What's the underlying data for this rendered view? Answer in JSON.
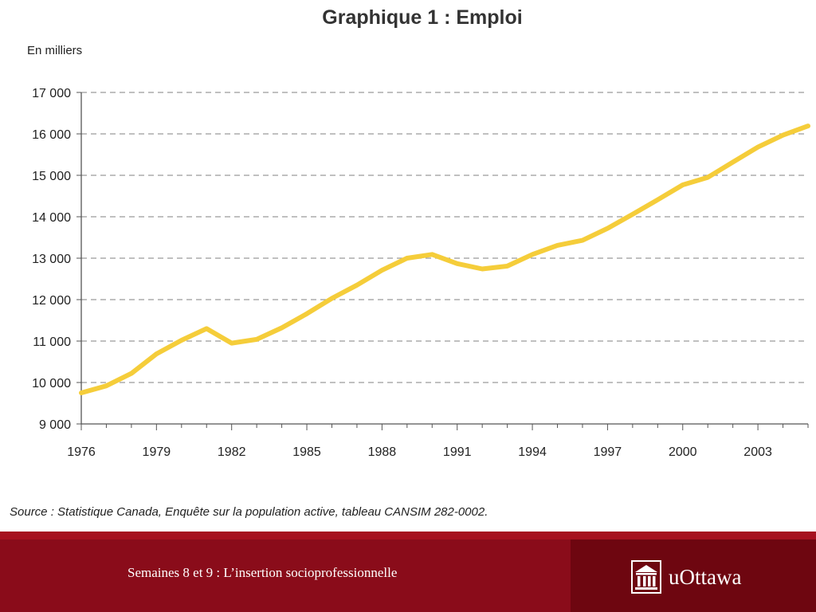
{
  "chart_data": {
    "type": "line",
    "title": "Graphique 1 : Emploi",
    "ylabel": "En milliers",
    "xlabel": "",
    "xlim": [
      1976,
      2005
    ],
    "ylim": [
      9000,
      17000
    ],
    "x_ticks": [
      1976,
      1979,
      1982,
      1985,
      1988,
      1991,
      1994,
      1997,
      2000,
      2003
    ],
    "y_ticks": [
      9000,
      10000,
      11000,
      12000,
      13000,
      14000,
      15000,
      16000,
      17000
    ],
    "y_tick_labels": [
      "9 000",
      "10 000",
      "11 000",
      "12 000",
      "13 000",
      "14 000",
      "15 000",
      "16 000",
      "17 000"
    ],
    "grid": "horizontal dashed",
    "series": [
      {
        "color": "#f5cd3a",
        "x": [
          1976,
          1977,
          1978,
          1979,
          1980,
          1981,
          1982,
          1983,
          1984,
          1985,
          1986,
          1987,
          1988,
          1989,
          1990,
          1991,
          1992,
          1993,
          1994,
          1995,
          1996,
          1997,
          1998,
          1999,
          2000,
          2001,
          2002,
          2003,
          2004,
          2005
        ],
        "y": [
          9750,
          9920,
          10220,
          10690,
          11020,
          11300,
          10950,
          11040,
          11320,
          11660,
          12030,
          12350,
          12710,
          13000,
          13090,
          12870,
          12740,
          12810,
          13090,
          13310,
          13430,
          13720,
          14060,
          14410,
          14770,
          14950,
          15320,
          15680,
          15970,
          16190
        ]
      }
    ],
    "source": "Source : Statistique Canada, Enquête sur la population active, tableau CANSIM 282-0002."
  },
  "footer": {
    "caption": "Semaines 8 et 9 : L’insertion socioprofessionnelle",
    "logo_text": "uOttawa",
    "logo_icon": "university-building-icon",
    "bg_color": "#8a0c1a",
    "logo_bg_color": "#6e0610"
  },
  "colors": {
    "line": "#f5cd3a",
    "grid": "#9a9a9a",
    "axis": "#555555"
  }
}
